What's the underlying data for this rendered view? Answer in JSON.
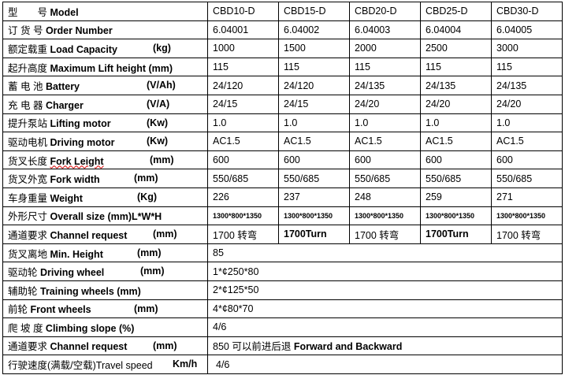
{
  "columns": [
    "CBD10-D",
    "CBD15-D",
    "CBD20-D",
    "CBD25-D",
    "CBD30-D"
  ],
  "rows": [
    {
      "cn": "型　　号",
      "en": "Model",
      "unit": "",
      "values": [
        "CBD10-D",
        "CBD15-D",
        "CBD20-D",
        "CBD25-D",
        "CBD30-D"
      ]
    },
    {
      "cn": "订 货 号",
      "en": "Order Number",
      "unit": "",
      "values": [
        "6.04001",
        "6.04002",
        "6.04003",
        "6.04004",
        "6.04005"
      ]
    },
    {
      "cn": "额定载重 ",
      "en": "Load Capacity",
      "unit": "(kg)",
      "values": [
        "1000",
        "1500",
        "2000",
        "2500",
        "3000"
      ]
    },
    {
      "cn": "起升高度",
      "en": "Maximum Lift height (mm)",
      "unit": "",
      "values": [
        "115",
        "115",
        "115",
        "115",
        "115"
      ]
    },
    {
      "cn": "蓄 电 池",
      "en": "Battery",
      "unit": "(V/Ah)",
      "values": [
        "24/120",
        "24/120",
        "24/135",
        "24/135",
        "24/135"
      ]
    },
    {
      "cn": "充 电 器",
      "en": "Charger",
      "unit": "(V/A)",
      "values": [
        "24/15",
        "24/15",
        "24/20",
        "24/20",
        "24/20"
      ]
    },
    {
      "cn": "提升泵站",
      "en": "Lifting motor",
      "unit": "(Kw)",
      "values": [
        "1.0",
        "1.0",
        "1.0",
        "1.0",
        "1.0"
      ]
    },
    {
      "cn": "驱动电机",
      "en": "Driving motor",
      "unit": "(Kw)",
      "values": [
        "AC1.5",
        "AC1.5",
        "AC1.5",
        "AC1.5",
        "AC1.5"
      ]
    },
    {
      "cn": "货叉长度",
      "en": "Fork Leight",
      "unit": "(mm)",
      "values": [
        "600",
        "600",
        "600",
        "600",
        "600"
      ]
    },
    {
      "cn": "货叉外宽",
      "en": "Fork width",
      "unit": "(mm)",
      "values": [
        "550/685",
        "550/685",
        "550/685",
        "550/685",
        "550/685"
      ]
    },
    {
      "cn": "车身重量",
      "en": "Weight",
      "unit": "(Kg)",
      "values": [
        "226",
        "237",
        "248",
        "259",
        "271"
      ]
    },
    {
      "cn": "外形尺寸",
      "en": "Overall size (mm)L*W*H",
      "unit": "",
      "values": [
        "1300*800*1350",
        "1300*800*1350",
        "1300*800*1350",
        "1300*800*1350",
        "1300*800*1350"
      ]
    },
    {
      "cn": "通道要求 ",
      "en": "Channel request",
      "unit": "(mm)",
      "values": [
        "1700 转弯",
        "1700Turn",
        "1700 转弯",
        "1700Turn",
        "1700 转弯"
      ]
    },
    {
      "cn": "货叉离地",
      "en": "Min. Height",
      "unit": "(mm)",
      "value": "85"
    },
    {
      "cn": "驱动轮 ",
      "en": "Driving wheel",
      "unit": "(mm)",
      "value": "1*¢250*80"
    },
    {
      "cn": "辅助轮",
      "en": "Training wheels (mm)",
      "unit": "",
      "value": "2*¢125*50"
    },
    {
      "cn": "前轮",
      "en": "Front wheels",
      "unit": "(mm)",
      "value": "4*¢80*70"
    },
    {
      "cn": "爬 坡 度 ",
      "en": "Climbing slope (%)",
      "unit": "",
      "value": "4/6"
    },
    {
      "cn": "通道要求 ",
      "en": "Channel request",
      "unit": "(mm)",
      "value": "850 可以前进后退 Forward and Backward"
    },
    {
      "cn": "行驶速度(满载/空载)Travel speed",
      "en": "",
      "unit": "Km/h",
      "value": "4/6"
    }
  ]
}
